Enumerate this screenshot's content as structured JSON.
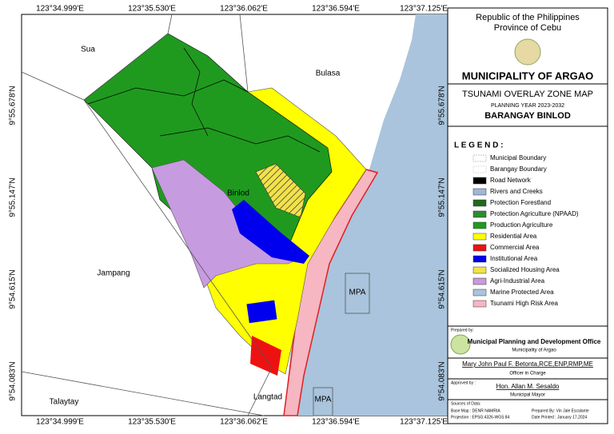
{
  "map": {
    "longitudes": [
      "123°34.999'E",
      "123°35.530'E",
      "123°36.062'E",
      "123°36.594'E",
      "123°37.125'E"
    ],
    "latitudes": [
      "9°55.678'N",
      "9°55.147'N",
      "9°54.615'N",
      "9°54.083'N"
    ],
    "place_labels": [
      "Sua",
      "Bulasa",
      "Binlod",
      "Jampang",
      "Talaytay",
      "Langtad",
      "MPA",
      "MPA"
    ]
  },
  "header": {
    "line1": "Republic of the Philippines",
    "line2": "Province of Cebu",
    "municipality": "MUNICIPALITY OF ARGAO",
    "map_title": "TSUNAMI OVERLAY ZONE MAP",
    "planning_year": "PLANNING YEAR 2023-2032",
    "barangay": "BARANGAY BINLOD"
  },
  "legend": {
    "title": "L E G E N D :",
    "items": [
      {
        "label": "Municipal Boundary",
        "color": "#888888"
      },
      {
        "label": "Barangay Boundary",
        "color": "#bbbbbb"
      },
      {
        "label": "Road Network",
        "color": "#000000"
      },
      {
        "label": "Rivers and Creeks",
        "color": "#9fb7d9"
      },
      {
        "label": "Protection Forestland",
        "color": "#1e6b1e"
      },
      {
        "label": "Protection Agriculture (NPAAD)",
        "color": "#2e8b2e"
      },
      {
        "label": "Production Agriculture",
        "color": "#1f9a1f"
      },
      {
        "label": "Residential Area",
        "color": "#ffff00"
      },
      {
        "label": "Commercial Area",
        "color": "#ee1111"
      },
      {
        "label": "Institutional Area",
        "color": "#0000ee"
      },
      {
        "label": "Socialized Housing Area",
        "color": "#f2e24a"
      },
      {
        "label": "Agri-Industrial Area",
        "color": "#c79be0"
      },
      {
        "label": "Marine Protected Area",
        "color": "#a9c4dc"
      },
      {
        "label": "Tsunami High Risk Area",
        "color": "#f6b6c2"
      }
    ]
  },
  "footer": {
    "prepared_by": "Prepared by:",
    "office": "Municipal Planning and Development Office",
    "office_sub": "Municipality of Argao",
    "officer": "Mary John Paul F. Betonta,RCE,ENP,RMP,ME",
    "officer_role": "Officer in Charge",
    "approved_by": "Approved by :",
    "mayor": "Hon. Allan M. Sesaldo",
    "mayor_role": "Municipal Mayor",
    "sources": "Sources of Data:",
    "base_map": "Base Map : DENR NAMRIA",
    "projection": "Projection : EPSG:4326-WGS 84",
    "prepared_person": "Prepared By: Vin Jale Escalante",
    "date_printed": "Date Printed : January 17,2024"
  }
}
